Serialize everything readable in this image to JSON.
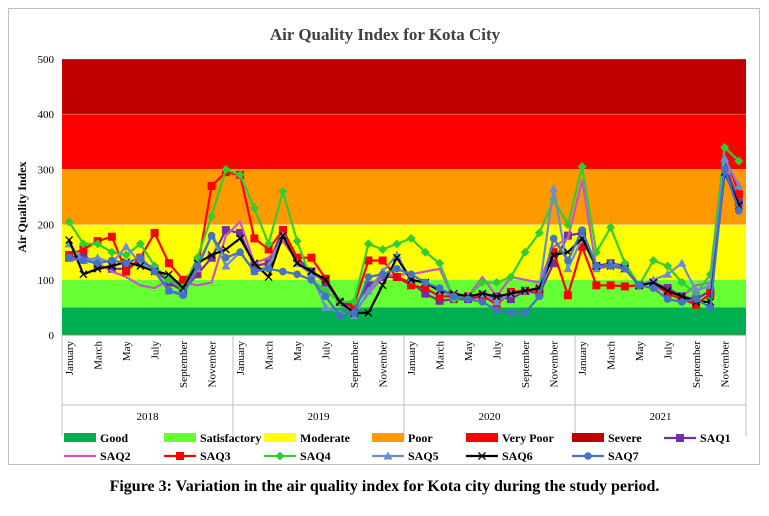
{
  "caption": "Figure 3: Variation in the air quality index for Kota city during the study period.",
  "chart_data": {
    "type": "line",
    "title": "Air Quality Index for Kota City",
    "xlabel": "",
    "ylabel": "Air Quality Index",
    "ylim": [
      0,
      500
    ],
    "yticks": [
      "0",
      "100",
      "200",
      "300",
      "400",
      "500"
    ],
    "month_tick_labels": [
      "January",
      "March",
      "May",
      "July",
      "September",
      "November"
    ],
    "years": [
      "2018",
      "2019",
      "2020",
      "2021"
    ],
    "bands": [
      {
        "name": "Good",
        "from": 0,
        "to": 50,
        "color": "#00b050"
      },
      {
        "name": "Satisfactory",
        "from": 50,
        "to": 100,
        "color": "#66ff33"
      },
      {
        "name": "Moderate",
        "from": 100,
        "to": 200,
        "color": "#ffff00"
      },
      {
        "name": "Poor",
        "from": 200,
        "to": 300,
        "color": "#ff9900"
      },
      {
        "name": "Very Poor",
        "from": 300,
        "to": 400,
        "color": "#ff0000"
      },
      {
        "name": "Severe",
        "from": 400,
        "to": 500,
        "color": "#c00000"
      }
    ],
    "series": [
      {
        "name": "SAQ1",
        "color": "#7030a0",
        "marker": "square",
        "values": [
          140,
          145,
          125,
          120,
          120,
          135,
          120,
          95,
          80,
          110,
          140,
          190,
          185,
          125,
          130,
          190,
          140,
          115,
          95,
          60,
          50,
          90,
          105,
          105,
          95,
          75,
          62,
          65,
          65,
          70,
          70,
          65,
          80,
          75,
          130,
          180,
          185,
          125,
          130,
          125,
          90,
          95,
          85,
          70,
          65,
          80,
          310,
          240
        ]
      },
      {
        "name": "SAQ2",
        "color": "#c855c8",
        "marker": "none",
        "values": [
          135,
          140,
          130,
          115,
          105,
          90,
          85,
          100,
          95,
          90,
          95,
          180,
          205,
          130,
          140,
          170,
          135,
          110,
          100,
          55,
          40,
          75,
          105,
          110,
          110,
          115,
          120,
          65,
          70,
          105,
          70,
          105,
          100,
          95,
          160,
          175,
          280,
          120,
          125,
          120,
          90,
          85,
          80,
          70,
          90,
          95,
          300,
          275
        ]
      },
      {
        "name": "SAQ3",
        "color": "#ff0000",
        "marker": "square",
        "values": [
          145,
          155,
          170,
          178,
          115,
          140,
          185,
          130,
          100,
          120,
          270,
          295,
          290,
          175,
          155,
          190,
          140,
          140,
          102,
          60,
          55,
          135,
          135,
          105,
          90,
          85,
          70,
          70,
          70,
          72,
          55,
          78,
          80,
          82,
          150,
          72,
          160,
          90,
          90,
          88,
          90,
          95,
          75,
          65,
          55,
          75,
          330,
          255
        ]
      },
      {
        "name": "SAQ4",
        "color": "#33cc33",
        "marker": "diamond",
        "values": [
          205,
          165,
          165,
          150,
          145,
          165,
          125,
          100,
          85,
          140,
          215,
          300,
          290,
          230,
          165,
          260,
          170,
          100,
          80,
          60,
          60,
          165,
          155,
          165,
          175,
          150,
          130,
          65,
          70,
          95,
          95,
          105,
          150,
          185,
          245,
          200,
          305,
          150,
          195,
          130,
          90,
          135,
          125,
          95,
          75,
          110,
          340,
          315
        ]
      },
      {
        "name": "SAQ5",
        "color": "#6a8fd0",
        "marker": "triangle",
        "values": [
          165,
          135,
          140,
          130,
          160,
          130,
          120,
          80,
          75,
          120,
          180,
          125,
          150,
          115,
          125,
          180,
          130,
          110,
          50,
          40,
          35,
          80,
          115,
          145,
          100,
          95,
          80,
          70,
          70,
          75,
          60,
          75,
          80,
          85,
          265,
          120,
          175,
          120,
          130,
          120,
          90,
          100,
          110,
          130,
          80,
          90,
          320,
          270
        ]
      },
      {
        "name": "SAQ6",
        "color": "#000000",
        "marker": "x",
        "values": [
          172,
          110,
          120,
          125,
          132,
          125,
          115,
          110,
          85,
          130,
          145,
          155,
          175,
          130,
          105,
          180,
          130,
          115,
          100,
          60,
          40,
          40,
          90,
          140,
          100,
          95,
          80,
          75,
          70,
          75,
          70,
          75,
          80,
          85,
          145,
          150,
          175,
          125,
          125,
          120,
          90,
          95,
          80,
          70,
          60,
          60,
          295,
          235
        ]
      },
      {
        "name": "SAQ7",
        "color": "#4472c4",
        "marker": "circle",
        "values": [
          140,
          135,
          130,
          135,
          130,
          140,
          115,
          80,
          72,
          125,
          180,
          140,
          150,
          115,
          120,
          115,
          110,
          100,
          70,
          35,
          40,
          105,
          110,
          120,
          110,
          95,
          85,
          70,
          65,
          60,
          45,
          40,
          40,
          70,
          175,
          135,
          190,
          125,
          125,
          120,
          90,
          85,
          65,
          60,
          65,
          50,
          300,
          225
        ]
      }
    ],
    "legend": {
      "placement": "bottom",
      "entries": [
        "Good",
        "Satisfactory",
        "Moderate",
        "Poor",
        "Very Poor",
        "Severe",
        "SAQ1",
        "SAQ2",
        "SAQ3",
        "SAQ4",
        "SAQ5",
        "SAQ6",
        "SAQ7"
      ]
    }
  }
}
